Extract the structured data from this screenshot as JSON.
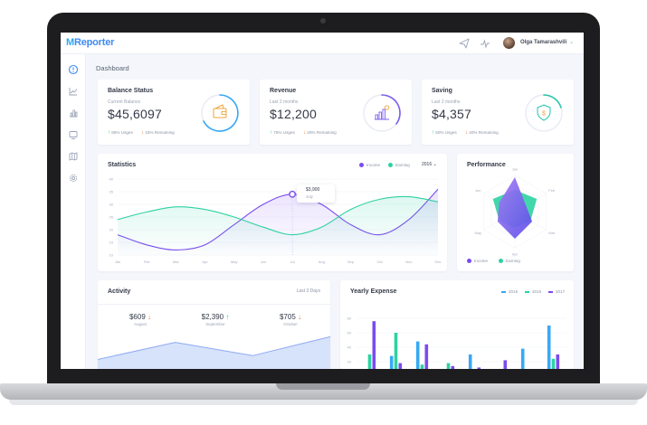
{
  "app": {
    "logo_mark": "M",
    "logo_text": "Reporter",
    "user_name": "Olga Tamarashvili",
    "page_title": "Dashboard"
  },
  "topbar": {
    "icons": [
      "send-icon",
      "activity-icon"
    ]
  },
  "sidebar": {
    "icons": [
      "dashboard-icon",
      "line-chart-icon",
      "bar-chart-icon",
      "monitor-icon",
      "map-icon",
      "settings-icon"
    ]
  },
  "cards": [
    {
      "title": "Balance Status",
      "subtitle": "Current Balance",
      "value": "$45,6097",
      "up_text": "85% Usges",
      "down_text": "15% Remaining",
      "ring_icon": "wallet-icon",
      "ring_color": "#38a9f5"
    },
    {
      "title": "Revenue",
      "subtitle": "Last 2 months",
      "value": "$12,200",
      "up_text": "75% Usges",
      "down_text": "25% Remaining",
      "ring_icon": "growth-chart-icon",
      "ring_color": "#7b5cf0"
    },
    {
      "title": "Saving",
      "subtitle": "Last 2 months",
      "value": "$4,357",
      "up_text": "50% Usges",
      "down_text": "40% Remaining",
      "ring_icon": "shield-dollar-icon",
      "ring_color": "#26c6a8"
    }
  ],
  "statistics": {
    "title": "Statistics",
    "legend": [
      {
        "name": "Income",
        "color": "#7b4bf0"
      },
      {
        "name": "Earning",
        "color": "#2ed1a2"
      }
    ],
    "year": "2016",
    "tooltip": {
      "value": "$3,900",
      "label": "July"
    }
  },
  "performance": {
    "title": "Performance",
    "legend": [
      {
        "name": "Income",
        "color": "#7b4bf0"
      },
      {
        "name": "Earning",
        "color": "#2ed1a2"
      }
    ]
  },
  "activity": {
    "title": "Activity",
    "period": "Last 3 Days",
    "columns": [
      {
        "value": "$609",
        "trend": "down",
        "month": "August"
      },
      {
        "value": "$2,390",
        "trend": "up",
        "month": "September"
      },
      {
        "value": "$705",
        "trend": "down",
        "month": "October"
      }
    ]
  },
  "yearly_expense": {
    "title": "Yearly Expense",
    "legend": [
      {
        "name": "2015",
        "color": "#38a9f5"
      },
      {
        "name": "2016",
        "color": "#2ed1a2"
      },
      {
        "name": "2017",
        "color": "#7b4bf0"
      }
    ]
  },
  "chart_data": [
    {
      "type": "line",
      "title": "Statistics",
      "x": [
        "Jan",
        "Feb",
        "Mar",
        "Apr",
        "May",
        "Jun",
        "Jul",
        "Aug",
        "Sep",
        "Oct",
        "Nov",
        "Dec"
      ],
      "yticks": [
        "10",
        "15",
        "20",
        "25",
        "30",
        "35",
        "40"
      ],
      "ylim": [
        10,
        40
      ],
      "series": [
        {
          "name": "Income",
          "color": "#7b4bf0",
          "values": [
            18,
            14,
            12,
            14,
            22,
            30,
            34,
            30,
            22,
            18,
            24,
            36
          ]
        },
        {
          "name": "Earning",
          "color": "#2ed1a2",
          "values": [
            24,
            27,
            29,
            28,
            25,
            21,
            18,
            21,
            28,
            32,
            33,
            31
          ]
        }
      ]
    },
    {
      "type": "radar",
      "title": "Performance",
      "axes": [
        "Jan",
        "Feb",
        "Mar",
        "Apr",
        "May",
        "Jun"
      ],
      "series": [
        {
          "name": "Income",
          "color": "#7b4bf0",
          "values": [
            0.95,
            0.35,
            0.55,
            0.75,
            0.55,
            0.5
          ]
        },
        {
          "name": "Earning",
          "color": "#2ed1a2",
          "values": [
            0.6,
            0.7,
            0.5,
            0.45,
            0.5,
            0.7
          ]
        }
      ]
    },
    {
      "type": "area",
      "title": "Activity",
      "values": [
        10,
        28,
        14,
        34
      ]
    },
    {
      "type": "bar",
      "title": "Yearly Expense",
      "yticks": [
        "80",
        "60",
        "40",
        "20"
      ],
      "ylim": [
        0,
        100
      ],
      "groups": 8,
      "series": [
        {
          "name": "2015",
          "color": "#38a9f5",
          "values": [
            8,
            28,
            48,
            10,
            30,
            6,
            38,
            70
          ]
        },
        {
          "name": "2016",
          "color": "#2ed1a2",
          "values": [
            30,
            60,
            16,
            18,
            6,
            10,
            8,
            24
          ]
        },
        {
          "name": "2017",
          "color": "#7b4bf0",
          "values": [
            76,
            18,
            44,
            14,
            12,
            22,
            6,
            30
          ]
        }
      ]
    }
  ]
}
